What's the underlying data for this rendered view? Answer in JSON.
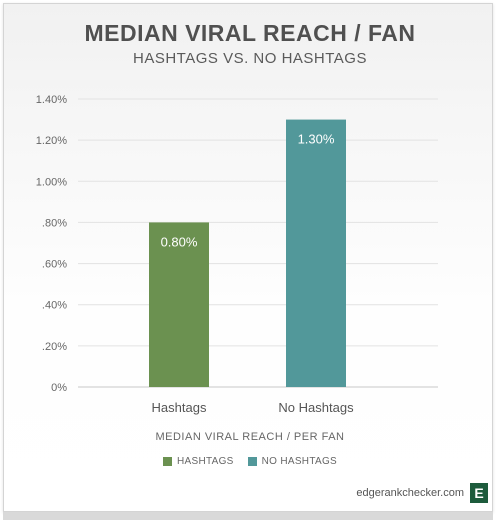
{
  "chart_data": {
    "type": "bar",
    "title": "MEDIAN VIRAL REACH / FAN",
    "subtitle": "HASHTAGS VS. NO HASHTAGS",
    "categories": [
      "Hashtags",
      "No Hashtags"
    ],
    "values": [
      0.8,
      1.3
    ],
    "value_labels": [
      "0.80%",
      "1.30%"
    ],
    "colors": [
      "#6b9150",
      "#52989a"
    ],
    "xlabel": "MEDIAN VIRAL REACH / PER FAN",
    "ylabel": "",
    "ylim": [
      0,
      1.4
    ],
    "yticks": [
      0,
      0.2,
      0.4,
      0.6,
      0.8,
      1.0,
      1.2,
      1.4
    ],
    "ytick_labels": [
      "0%",
      ".20%",
      ".40%",
      ".60%",
      ".80%",
      "1.00%",
      "1.20%",
      "1.40%"
    ],
    "grid": true,
    "legend": [
      {
        "label": "HASHTAGS",
        "color": "#6b9150"
      },
      {
        "label": "NO HASHTAGS",
        "color": "#52989a"
      }
    ],
    "legend_position": "bottom"
  },
  "footer": {
    "brand_text": "edgerankchecker.com",
    "logo_letter": "E"
  }
}
